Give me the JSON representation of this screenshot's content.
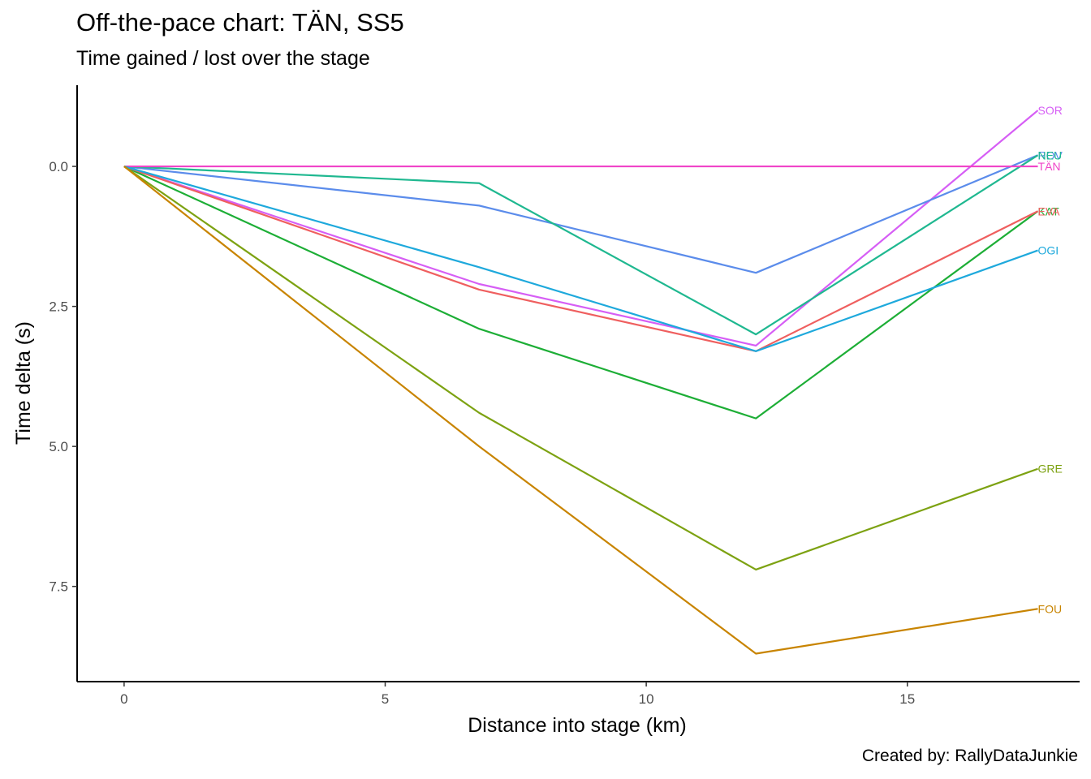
{
  "chart_data": {
    "type": "line",
    "title": "Off-the-pace chart: TÄN, SS5",
    "subtitle": "Time gained / lost over the stage",
    "xlabel": "Distance into stage (km)",
    "ylabel": "Time delta (s)",
    "caption": "Created by: RallyDataJunkie",
    "xlim": [
      -0.9,
      18.3
    ],
    "ylim": [
      -1.45,
      9.2
    ],
    "y_reversed": true,
    "x_ticks": [
      0,
      5,
      10,
      15
    ],
    "x_tick_labels": [
      "0",
      "5",
      "10",
      "15"
    ],
    "y_ticks": [
      0,
      2.5,
      5,
      7.5
    ],
    "y_tick_labels": [
      "0.0",
      "2.5",
      "5.0",
      "7.5"
    ],
    "grid": false,
    "legend": "none",
    "x": [
      0,
      6.8,
      12.1,
      17.5
    ],
    "series": [
      {
        "name": "SOR",
        "color": "#D65EF5",
        "values": [
          0,
          2.1,
          3.2,
          -1.0
        ]
      },
      {
        "name": "ROV",
        "color": "#5B8CEB",
        "values": [
          0,
          0.7,
          1.9,
          -0.2
        ]
      },
      {
        "name": "NEU",
        "color": "#1FB890",
        "values": [
          0,
          0.3,
          3.0,
          -0.2
        ]
      },
      {
        "name": "TÄN",
        "color": "#F044C8",
        "values": [
          0,
          0,
          0,
          0
        ]
      },
      {
        "name": "KAT",
        "color": "#1DAE36",
        "values": [
          0,
          2.9,
          4.5,
          0.8
        ]
      },
      {
        "name": "EVA",
        "color": "#EF5F5F",
        "values": [
          0,
          2.2,
          3.3,
          0.8
        ]
      },
      {
        "name": "OGI",
        "color": "#1EA9DC",
        "values": [
          0,
          1.8,
          3.3,
          1.5
        ]
      },
      {
        "name": "GRE",
        "color": "#7DA212",
        "values": [
          0,
          4.4,
          7.2,
          5.4
        ]
      },
      {
        "name": "FOU",
        "color": "#C88400",
        "values": [
          0,
          5.0,
          8.7,
          7.9
        ]
      }
    ]
  }
}
